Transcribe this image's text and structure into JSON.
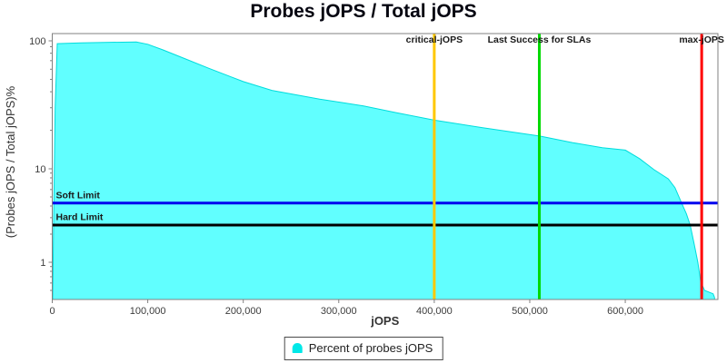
{
  "title": "Probes jOPS / Total jOPS",
  "legend": {
    "label": "Percent of probes jOPS",
    "swatch_color": "#00e8e8"
  },
  "chart_data": {
    "type": "area",
    "title": "Probes jOPS / Total jOPS",
    "xlabel": "jOPS",
    "ylabel": "(Probes jOPS / Total jOPS)%",
    "y_scale": "log",
    "grid": false,
    "legend_position": "bottom",
    "xlim": [
      0,
      697000
    ],
    "ylim": [
      0.4,
      114
    ],
    "x_ticks": [
      {
        "v": 0,
        "label": "0"
      },
      {
        "v": 100000,
        "label": "100,000"
      },
      {
        "v": 200000,
        "label": "200,000"
      },
      {
        "v": 300000,
        "label": "300,000"
      },
      {
        "v": 400000,
        "label": "400,000"
      },
      {
        "v": 500000,
        "label": "500,000"
      },
      {
        "v": 600000,
        "label": "600,000"
      }
    ],
    "y_ticks": [
      {
        "v": 1,
        "label": "1"
      },
      {
        "v": 10,
        "label": "10"
      },
      {
        "v": 100,
        "label": "100"
      }
    ],
    "series": [
      {
        "name": "Percent of probes jOPS",
        "line_color": "#00dcdc",
        "fill_color": "rgba(0,255,255,0.62)",
        "points": [
          [
            500,
            0.42
          ],
          [
            1200,
            2.0
          ],
          [
            3000,
            30
          ],
          [
            5200,
            95
          ],
          [
            30000,
            96.5
          ],
          [
            88000,
            98
          ],
          [
            100000,
            94
          ],
          [
            116000,
            85
          ],
          [
            140000,
            72
          ],
          [
            164000,
            61
          ],
          [
            200000,
            48
          ],
          [
            230000,
            41
          ],
          [
            280000,
            35
          ],
          [
            326000,
            31
          ],
          [
            360000,
            27.5
          ],
          [
            400000,
            24
          ],
          [
            450000,
            21
          ],
          [
            511000,
            18
          ],
          [
            545000,
            16
          ],
          [
            576000,
            14.6
          ],
          [
            600000,
            14
          ],
          [
            615000,
            12
          ],
          [
            630000,
            9.8
          ],
          [
            645000,
            7.8
          ],
          [
            652000,
            6.3
          ],
          [
            659000,
            4.3
          ],
          [
            664000,
            3.3
          ],
          [
            668000,
            2.5
          ],
          [
            672000,
            1.6
          ],
          [
            676000,
            1.0
          ],
          [
            679000,
            0.62
          ],
          [
            683000,
            0.5
          ],
          [
            692000,
            0.46
          ],
          [
            693500,
            0.42
          ]
        ]
      }
    ],
    "hlines": [
      {
        "id": "soft-limit",
        "label": "Soft Limit",
        "value": 4.3,
        "color": "#0000ee",
        "width": 3
      },
      {
        "id": "hard-limit",
        "label": "Hard Limit",
        "value": 2.5,
        "color": "#000000",
        "width": 3
      }
    ],
    "vlines": [
      {
        "id": "critical-jops",
        "label": "critical-jOPS",
        "value": 400000,
        "color": "#ffc800",
        "width": 3
      },
      {
        "id": "last-success-slas",
        "label": "Last Success for SLAs",
        "value": 510000,
        "color": "#00d900",
        "width": 3
      },
      {
        "id": "max-jops",
        "label": "max-jOPS",
        "value": 680000,
        "color": "#ff0000",
        "width": 3
      }
    ],
    "colors": {
      "plot_border": "#808080",
      "tick_text": "#3c3c3c",
      "axis_label": "#333333",
      "annotation_text": "#1a1a1a"
    }
  }
}
